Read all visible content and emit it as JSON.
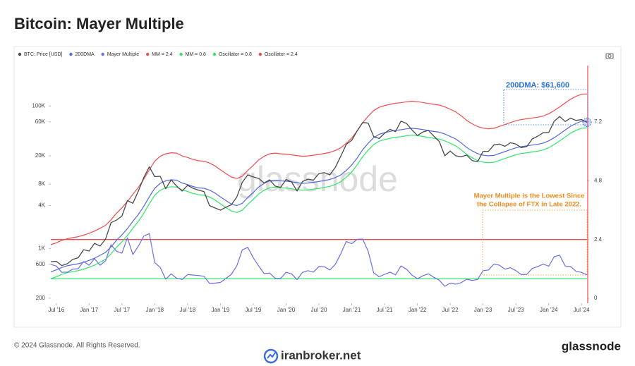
{
  "chart_data": {
    "type": "line",
    "title": "Bitcoin: Mayer Multiple",
    "watermark": "glassnode",
    "x": [
      "2016-06",
      "2016-07",
      "2016-08",
      "2016-09",
      "2016-10",
      "2016-11",
      "2016-12",
      "2017-01",
      "2017-02",
      "2017-03",
      "2017-04",
      "2017-05",
      "2017-06",
      "2017-07",
      "2017-08",
      "2017-09",
      "2017-10",
      "2017-11",
      "2017-12",
      "2018-01",
      "2018-02",
      "2018-03",
      "2018-04",
      "2018-05",
      "2018-06",
      "2018-07",
      "2018-08",
      "2018-09",
      "2018-10",
      "2018-11",
      "2018-12",
      "2019-01",
      "2019-02",
      "2019-03",
      "2019-04",
      "2019-05",
      "2019-06",
      "2019-07",
      "2019-08",
      "2019-09",
      "2019-10",
      "2019-11",
      "2019-12",
      "2020-01",
      "2020-02",
      "2020-03",
      "2020-04",
      "2020-05",
      "2020-06",
      "2020-07",
      "2020-08",
      "2020-09",
      "2020-10",
      "2020-11",
      "2020-12",
      "2021-01",
      "2021-02",
      "2021-03",
      "2021-04",
      "2021-05",
      "2021-06",
      "2021-07",
      "2021-08",
      "2021-09",
      "2021-10",
      "2021-11",
      "2021-12",
      "2022-01",
      "2022-02",
      "2022-03",
      "2022-04",
      "2022-05",
      "2022-06",
      "2022-07",
      "2022-08",
      "2022-09",
      "2022-10",
      "2022-11",
      "2022-12",
      "2023-01",
      "2023-02",
      "2023-03",
      "2023-04",
      "2023-05",
      "2023-06",
      "2023-07",
      "2023-08",
      "2023-09",
      "2023-10",
      "2023-11",
      "2023-12",
      "2024-01",
      "2024-02",
      "2024-03",
      "2024-04",
      "2024-05",
      "2024-06",
      "2024-07",
      "2024-08"
    ],
    "xlim": [
      "2016-06",
      "2024-08"
    ],
    "xticks": [
      {
        "value": "2016-07",
        "label": "Jul '16"
      },
      {
        "value": "2017-01",
        "label": "Jan '17"
      },
      {
        "value": "2017-07",
        "label": "Jul '17"
      },
      {
        "value": "2018-01",
        "label": "Jan '18"
      },
      {
        "value": "2018-07",
        "label": "Jul '18"
      },
      {
        "value": "2019-01",
        "label": "Jan '19"
      },
      {
        "value": "2019-07",
        "label": "Jul '19"
      },
      {
        "value": "2020-01",
        "label": "Jan '20"
      },
      {
        "value": "2020-07",
        "label": "Jul '20"
      },
      {
        "value": "2021-01",
        "label": "Jan '21"
      },
      {
        "value": "2021-07",
        "label": "Jul '21"
      },
      {
        "value": "2022-01",
        "label": "Jan '22"
      },
      {
        "value": "2022-07",
        "label": "Jul '22"
      },
      {
        "value": "2023-01",
        "label": "Jan '23"
      },
      {
        "value": "2023-07",
        "label": "Jul '23"
      },
      {
        "value": "2024-01",
        "label": "Jan '24"
      },
      {
        "value": "2024-07",
        "label": "Jul '24"
      }
    ],
    "ylog": true,
    "ylim": [
      170,
      370000
    ],
    "yticks": [
      200,
      600,
      {
        "value": 1000,
        "label": "1K"
      },
      {
        "value": 4000,
        "label": "4K"
      },
      {
        "value": 8000,
        "label": "8K"
      },
      {
        "value": 20000,
        "label": "20K"
      },
      {
        "value": 60000,
        "label": "60K"
      },
      {
        "value": 100000,
        "label": "100K"
      }
    ],
    "y2lim": [
      -0.2,
      9.5
    ],
    "y2ticks": [
      0,
      2.4,
      4.8,
      7.2
    ],
    "series": [
      {
        "name": "BTC: Price [USD]",
        "color": "#4a4a4a",
        "values": [
          650,
          660,
          575,
          610,
          700,
          740,
          960,
          920,
          1180,
          1080,
          1350,
          2300,
          2500,
          2850,
          4700,
          4300,
          6400,
          9900,
          14000,
          10200,
          10300,
          6900,
          9200,
          7500,
          6400,
          7700,
          7000,
          6600,
          6300,
          4000,
          3700,
          3450,
          3800,
          4100,
          5300,
          8500,
          10800,
          10100,
          9600,
          8300,
          9200,
          7500,
          7200,
          9300,
          8600,
          6400,
          8700,
          9400,
          9100,
          11300,
          11600,
          10800,
          13800,
          19700,
          29000,
          33000,
          45000,
          58800,
          57700,
          37300,
          35000,
          41500,
          47100,
          43800,
          61300,
          57000,
          46300,
          38500,
          43200,
          45500,
          37700,
          31800,
          20000,
          23300,
          20000,
          19400,
          20500,
          17200,
          16500,
          23100,
          23100,
          28500,
          29200,
          27200,
          30500,
          29200,
          26000,
          27000,
          34500,
          37700,
          42300,
          42600,
          61200,
          71300,
          60600,
          67500,
          62700,
          64600,
          59000
        ]
      },
      {
        "name": "200DMA",
        "color": "#5468e0",
        "values": [
          470,
          500,
          540,
          570,
          590,
          610,
          640,
          680,
          730,
          800,
          880,
          1050,
          1300,
          1550,
          1900,
          2400,
          3000,
          3900,
          5300,
          7000,
          8200,
          8900,
          9200,
          9100,
          8300,
          7900,
          7400,
          7100,
          7000,
          6600,
          6000,
          5300,
          4700,
          4200,
          4000,
          4300,
          5200,
          6100,
          7300,
          8200,
          8900,
          9100,
          8900,
          8800,
          8600,
          8400,
          8200,
          8300,
          8500,
          8700,
          9000,
          9300,
          9900,
          10800,
          12500,
          14800,
          18700,
          24300,
          30000,
          36000,
          40000,
          42300,
          44000,
          45600,
          46400,
          47800,
          48700,
          48000,
          46800,
          45300,
          44000,
          43000,
          40500,
          37500,
          34500,
          30400,
          26200,
          23500,
          21500,
          20400,
          20000,
          20300,
          21600,
          22900,
          24400,
          25900,
          26900,
          27600,
          28300,
          29000,
          30200,
          32500,
          36000,
          40500,
          46000,
          52000,
          57000,
          61000,
          61600
        ]
      },
      {
        "name": "Mayer Multiple",
        "color": "#6a6ee6",
        "axis": "y2",
        "values": [
          1.38,
          1.32,
          1.06,
          1.07,
          1.19,
          1.21,
          1.5,
          1.35,
          1.62,
          1.35,
          1.53,
          2.19,
          1.92,
          1.84,
          2.47,
          1.79,
          2.13,
          2.54,
          2.64,
          1.46,
          1.26,
          0.78,
          1.0,
          0.82,
          0.77,
          0.97,
          0.95,
          0.93,
          0.9,
          0.61,
          0.62,
          0.65,
          0.81,
          0.98,
          1.33,
          1.98,
          2.08,
          1.66,
          1.32,
          1.01,
          1.03,
          0.82,
          0.81,
          1.06,
          1.0,
          0.76,
          1.06,
          1.13,
          1.07,
          1.3,
          1.29,
          1.16,
          1.39,
          1.82,
          2.32,
          2.23,
          2.41,
          2.42,
          1.92,
          1.04,
          0.88,
          0.98,
          1.07,
          0.96,
          1.32,
          1.19,
          0.95,
          0.8,
          0.92,
          1.0,
          0.86,
          0.74,
          0.49,
          0.62,
          0.58,
          0.64,
          0.78,
          0.73,
          0.77,
          1.13,
          1.16,
          1.4,
          1.35,
          1.19,
          1.25,
          1.13,
          0.97,
          0.98,
          1.22,
          1.3,
          1.4,
          1.31,
          1.7,
          1.76,
          1.32,
          1.3,
          1.1,
          1.06,
          0.96
        ]
      },
      {
        "name": "MM = 2.4",
        "color": "#ef4d4d",
        "values": [
          1128,
          1200,
          1296,
          1368,
          1416,
          1464,
          1536,
          1632,
          1752,
          1920,
          2112,
          2520,
          3120,
          3720,
          4560,
          5760,
          7200,
          9360,
          12720,
          16800,
          19680,
          21360,
          22080,
          21840,
          19920,
          18960,
          17760,
          17040,
          16800,
          15840,
          14400,
          12720,
          11280,
          10080,
          9600,
          10320,
          12480,
          14640,
          17520,
          19680,
          21360,
          21840,
          21360,
          21120,
          20640,
          20160,
          19680,
          19920,
          20400,
          20880,
          21600,
          22320,
          23760,
          25920,
          30000,
          35520,
          44880,
          58320,
          72000,
          86400,
          96000,
          101520,
          105600,
          109440,
          111360,
          114720,
          116880,
          115200,
          112320,
          108720,
          105600,
          103200,
          97200,
          90000,
          82800,
          72960,
          62880,
          56400,
          51600,
          48960,
          48000,
          48720,
          51840,
          54960,
          58560,
          62160,
          64560,
          66240,
          67920,
          69600,
          72480,
          78000,
          86400,
          97200,
          110400,
          124800,
          136800,
          146400,
          147840
        ]
      },
      {
        "name": "MM = 0.8",
        "color": "#2ee66b",
        "values": [
          376,
          400,
          432,
          456,
          472,
          488,
          512,
          544,
          584,
          640,
          704,
          840,
          1040,
          1240,
          1520,
          1920,
          2400,
          3120,
          4240,
          5600,
          6560,
          7120,
          7360,
          7280,
          6640,
          6320,
          5920,
          5680,
          5600,
          5280,
          4800,
          4240,
          3760,
          3360,
          3200,
          3440,
          4160,
          4880,
          5840,
          6560,
          7120,
          7280,
          7120,
          7040,
          6880,
          6720,
          6560,
          6640,
          6800,
          6960,
          7200,
          7440,
          7920,
          8640,
          10000,
          11840,
          14960,
          19440,
          24000,
          28800,
          32000,
          33840,
          35200,
          36480,
          37120,
          38240,
          38960,
          38400,
          37440,
          36240,
          35200,
          34400,
          32400,
          30000,
          27600,
          24320,
          20960,
          18800,
          17200,
          16320,
          16000,
          16240,
          17280,
          18320,
          19520,
          20720,
          21520,
          22080,
          22640,
          23200,
          24160,
          26000,
          28800,
          32400,
          36800,
          41600,
          45600,
          48800,
          49280
        ]
      }
    ],
    "reference_lines": [
      {
        "name": "Oscillator = 0.8",
        "color": "#2ee66b",
        "axis": "y2",
        "value": 0.8
      },
      {
        "name": "Oscillator = 2.4",
        "color": "#ef4d4d",
        "axis": "y2",
        "value": 2.4
      }
    ],
    "annotations": [
      {
        "text": [
          "200DMA: $61,600"
        ],
        "color": "#2a6fd6"
      },
      {
        "text": [
          "Mayer Multiple is the Lowest Since",
          "the Collapse of FTX in Late 2022."
        ],
        "color": "#f08a1c"
      }
    ]
  },
  "footer": {
    "copyright": "© 2024 Glassnode. All Rights Reserved.",
    "site": "iranbroker.net",
    "brand": "glassnode"
  }
}
